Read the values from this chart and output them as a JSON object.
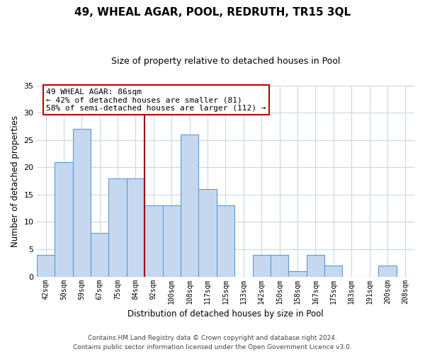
{
  "title": "49, WHEAL AGAR, POOL, REDRUTH, TR15 3QL",
  "subtitle": "Size of property relative to detached houses in Pool",
  "xlabel": "Distribution of detached houses by size in Pool",
  "ylabel": "Number of detached properties",
  "categories": [
    "42sqm",
    "50sqm",
    "59sqm",
    "67sqm",
    "75sqm",
    "84sqm",
    "92sqm",
    "100sqm",
    "108sqm",
    "117sqm",
    "125sqm",
    "133sqm",
    "142sqm",
    "150sqm",
    "158sqm",
    "167sqm",
    "175sqm",
    "183sqm",
    "191sqm",
    "200sqm",
    "208sqm"
  ],
  "values": [
    4,
    21,
    27,
    8,
    18,
    18,
    13,
    13,
    26,
    16,
    13,
    0,
    4,
    4,
    1,
    4,
    2,
    0,
    0,
    2,
    0
  ],
  "bar_color": "#c5d8f0",
  "bar_edge_color": "#5b9bd5",
  "reference_line_x": 5.5,
  "reference_line_color": "#a00000",
  "annotation_line1": "49 WHEAL AGAR: 86sqm",
  "annotation_line2": "← 42% of detached houses are smaller (81)",
  "annotation_line3": "58% of semi-detached houses are larger (112) →",
  "annotation_box_edge_color": "#c00000",
  "ylim": [
    0,
    35
  ],
  "yticks": [
    0,
    5,
    10,
    15,
    20,
    25,
    30,
    35
  ],
  "footer_line1": "Contains HM Land Registry data © Crown copyright and database right 2024.",
  "footer_line2": "Contains public sector information licensed under the Open Government Licence v3.0.",
  "bg_color": "#ffffff",
  "grid_color": "#c8d8e8"
}
